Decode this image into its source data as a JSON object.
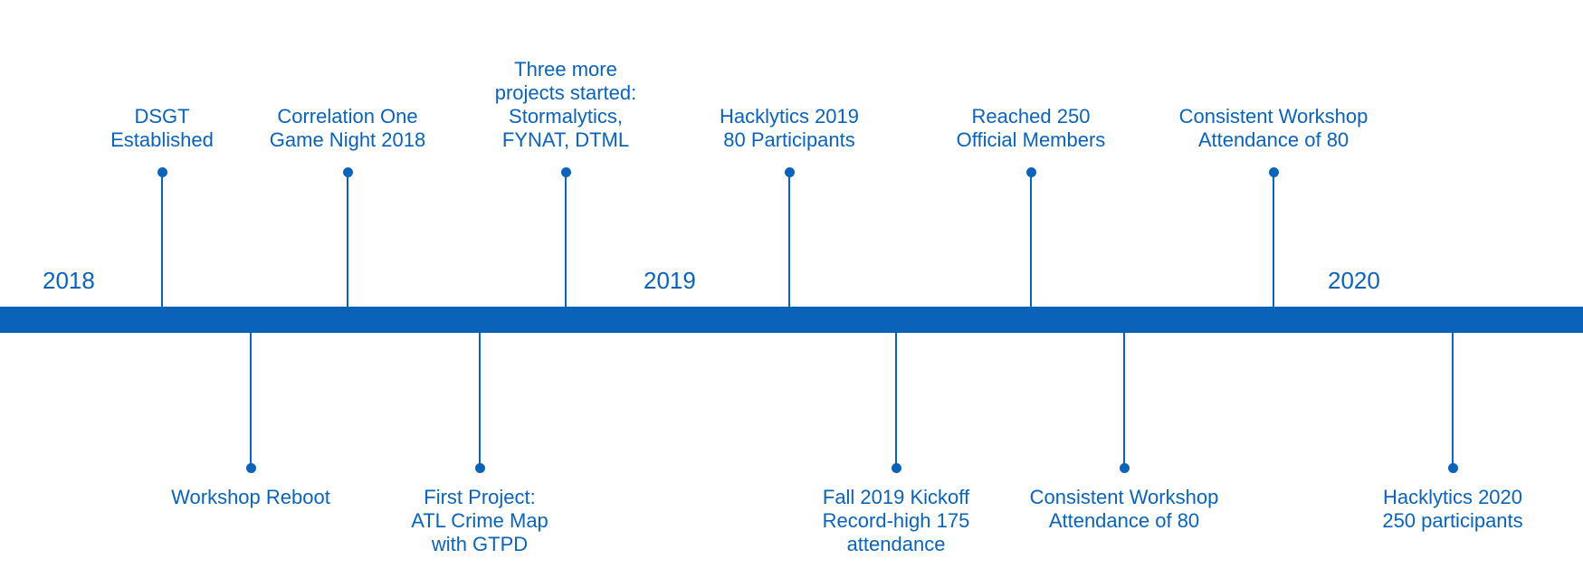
{
  "years": [
    "2018",
    "2019",
    "2020"
  ],
  "events_above": [
    {
      "lines": [
        "DSGT",
        "Established"
      ]
    },
    {
      "lines": [
        "Correlation One",
        "Game Night 2018"
      ]
    },
    {
      "lines": [
        "Three more",
        "projects started:",
        "Stormalytics,",
        "FYNAT, DTML"
      ]
    },
    {
      "lines": [
        "Hacklytics 2019",
        "80 Participants"
      ]
    },
    {
      "lines": [
        "Reached 250",
        "Official Members"
      ]
    },
    {
      "lines": [
        "Consistent Workshop",
        "Attendance of 80"
      ]
    }
  ],
  "events_below": [
    {
      "lines": [
        "Workshop Reboot"
      ]
    },
    {
      "lines": [
        "First Project:",
        "ATL Crime Map",
        "with GTPD"
      ]
    },
    {
      "lines": [
        "Fall 2019 Kickoff",
        "Record-high 175",
        "attendance"
      ]
    },
    {
      "lines": [
        "Consistent Workshop",
        "Attendance of 80"
      ]
    },
    {
      "lines": [
        "Hacklytics 2020",
        "250 participants"
      ]
    }
  ],
  "colors": {
    "primary": "#0a63b8",
    "background": "#ffffff"
  }
}
